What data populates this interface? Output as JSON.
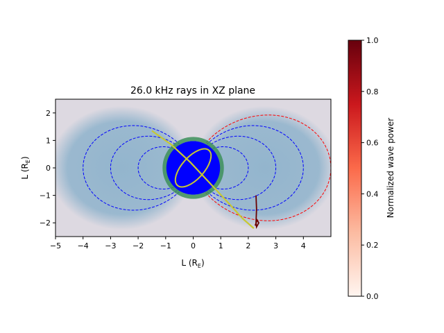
{
  "chart_data": {
    "type": "heatmap",
    "title": "26.0 kHz rays in XZ plane",
    "xlabel": {
      "main": "L (R",
      "sub": "E",
      "close": ")"
    },
    "ylabel": {
      "main": "L (R",
      "sub": "E",
      "close": ")"
    },
    "xlim": [
      -5,
      5
    ],
    "ylim": [
      -2.5,
      2.5
    ],
    "xticks": [
      -5,
      -4,
      -3,
      -2,
      -1,
      0,
      1,
      2,
      3,
      4
    ],
    "yticks": [
      2,
      1,
      0,
      -1,
      -2
    ],
    "earth": {
      "center": [
        0,
        0
      ],
      "radius": 1,
      "fill": "#0000ff",
      "ring_color": "#3d8f5a"
    },
    "plasmasphere_color": "#8fb3cc",
    "background_color": "#ddd9e1",
    "field_lines": {
      "color": "#0000ff",
      "L_values": [
        2,
        3,
        4
      ],
      "highlight": {
        "L": 5,
        "color": "#ff0000"
      }
    },
    "ray_path": {
      "color": "#c8c832",
      "points": [
        [
          -1.5,
          1.35
        ],
        [
          -0.8,
          0.85
        ],
        [
          -0.1,
          0.2
        ],
        [
          0.6,
          -0.55
        ],
        [
          1.3,
          -1.3
        ],
        [
          1.8,
          -1.85
        ],
        [
          2.2,
          -2.2
        ]
      ]
    },
    "wave_power_track": {
      "color": "#6b0000",
      "points": [
        [
          2.28,
          -1.0
        ],
        [
          2.3,
          -1.5
        ],
        [
          2.28,
          -2.0
        ],
        [
          2.3,
          -2.15
        ],
        [
          2.38,
          -2.0
        ],
        [
          2.32,
          -1.9
        ],
        [
          2.25,
          -2.1
        ]
      ]
    },
    "colorbar": {
      "label": "Normalized wave power",
      "range": [
        0,
        1
      ],
      "ticks": [
        0.0,
        0.2,
        0.4,
        0.6,
        0.8,
        1.0
      ],
      "tick_labels": [
        "0.0",
        "0.2",
        "0.4",
        "0.6",
        "0.8",
        "1.0"
      ],
      "colormap": [
        "#fff5f0",
        "#fcbba1",
        "#fb6a4a",
        "#cb181d",
        "#67000d"
      ]
    }
  }
}
